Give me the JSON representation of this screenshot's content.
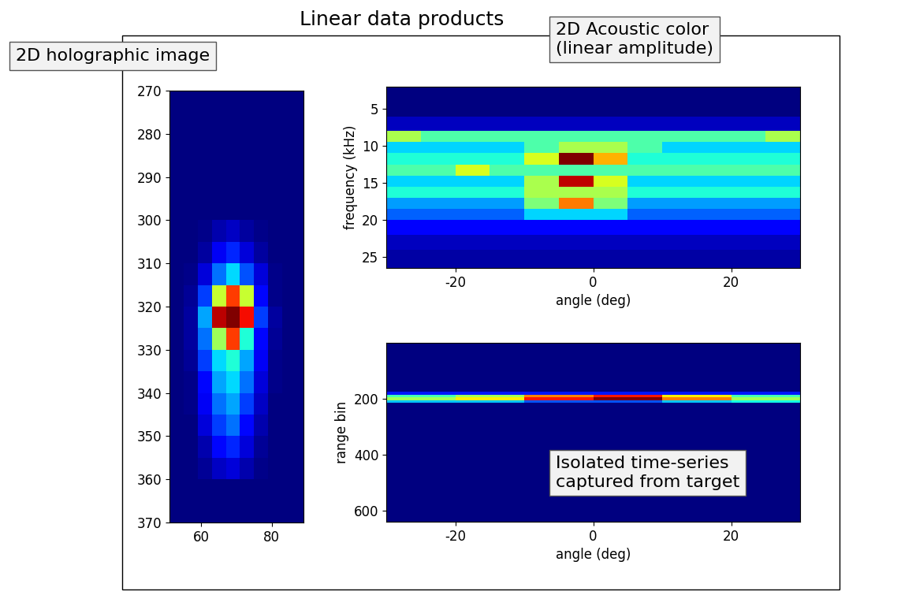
{
  "title": "Linear data products",
  "chart_data": [
    {
      "type": "heatmap",
      "annotation": "2D holographic image",
      "xlim": [
        51,
        89
      ],
      "ylim": [
        370,
        270
      ],
      "xticks": [
        60,
        80
      ],
      "yticks": [
        270,
        280,
        290,
        300,
        310,
        320,
        330,
        340,
        350,
        360,
        370
      ],
      "x_edges": [
        51,
        55,
        59,
        63,
        67,
        71,
        75,
        79,
        83,
        89
      ],
      "y_edges": [
        270,
        275,
        280,
        285,
        290,
        295,
        300,
        305,
        310,
        315,
        320,
        325,
        330,
        335,
        340,
        345,
        350,
        355,
        360,
        365,
        370
      ],
      "cells": [
        [
          0.02,
          0.02,
          0.02,
          0.02,
          0.02,
          0.02,
          0.02,
          0.02,
          0.02
        ],
        [
          0.02,
          0.02,
          0.02,
          0.02,
          0.02,
          0.02,
          0.02,
          0.02,
          0.02
        ],
        [
          0.02,
          0.02,
          0.02,
          0.02,
          0.02,
          0.02,
          0.02,
          0.02,
          0.02
        ],
        [
          0.02,
          0.02,
          0.02,
          0.02,
          0.02,
          0.02,
          0.02,
          0.02,
          0.02
        ],
        [
          0.02,
          0.02,
          0.02,
          0.02,
          0.02,
          0.02,
          0.02,
          0.02,
          0.02
        ],
        [
          0.02,
          0.02,
          0.02,
          0.02,
          0.02,
          0.02,
          0.02,
          0.02,
          0.02
        ],
        [
          0.02,
          0.02,
          0.03,
          0.06,
          0.08,
          0.05,
          0.03,
          0.02,
          0.02
        ],
        [
          0.02,
          0.02,
          0.05,
          0.12,
          0.18,
          0.1,
          0.05,
          0.02,
          0.02
        ],
        [
          0.02,
          0.03,
          0.1,
          0.25,
          0.35,
          0.22,
          0.1,
          0.03,
          0.02
        ],
        [
          0.02,
          0.04,
          0.2,
          0.6,
          0.85,
          0.6,
          0.15,
          0.03,
          0.02
        ],
        [
          0.02,
          0.05,
          0.3,
          0.95,
          1.0,
          0.9,
          0.2,
          0.05,
          0.02
        ],
        [
          0.02,
          0.05,
          0.25,
          0.55,
          0.85,
          0.4,
          0.15,
          0.04,
          0.02
        ],
        [
          0.02,
          0.04,
          0.2,
          0.35,
          0.4,
          0.3,
          0.12,
          0.03,
          0.02
        ],
        [
          0.02,
          0.03,
          0.15,
          0.3,
          0.35,
          0.25,
          0.1,
          0.03,
          0.02
        ],
        [
          0.02,
          0.03,
          0.12,
          0.25,
          0.3,
          0.2,
          0.08,
          0.02,
          0.02
        ],
        [
          0.02,
          0.02,
          0.1,
          0.2,
          0.25,
          0.15,
          0.06,
          0.02,
          0.02
        ],
        [
          0.02,
          0.02,
          0.06,
          0.15,
          0.18,
          0.1,
          0.04,
          0.02,
          0.02
        ],
        [
          0.02,
          0.02,
          0.04,
          0.08,
          0.1,
          0.06,
          0.03,
          0.02,
          0.02
        ],
        [
          0.02,
          0.02,
          0.02,
          0.02,
          0.02,
          0.02,
          0.02,
          0.02,
          0.02
        ],
        [
          0.02,
          0.02,
          0.02,
          0.02,
          0.02,
          0.02,
          0.02,
          0.02,
          0.02
        ]
      ]
    },
    {
      "type": "heatmap",
      "annotation": "2D Acoustic color\n(linear amplitude)",
      "xlabel": "angle (deg)",
      "ylabel": "frequency (kHz)",
      "xlim": [
        -30,
        30
      ],
      "ylim": [
        26.5,
        2
      ],
      "xticks": [
        -20,
        0,
        20
      ],
      "yticks": [
        5,
        10,
        15,
        20,
        25
      ],
      "x_edges": [
        -30,
        -25,
        -20,
        -15,
        -10,
        -5,
        0,
        5,
        10,
        15,
        20,
        25,
        30
      ],
      "y_edges": [
        2,
        4,
        6,
        8,
        9.5,
        11,
        12.5,
        14,
        15.5,
        17,
        18.5,
        20,
        22,
        24,
        26.5
      ],
      "cells": [
        [
          0.05,
          0.05,
          0.05,
          0.05,
          0.05,
          0.05,
          0.05,
          0.05,
          0.05,
          0.05,
          0.05,
          0.05
        ],
        [
          0.05,
          0.05,
          0.05,
          0.05,
          0.05,
          0.05,
          0.05,
          0.05,
          0.05,
          0.05,
          0.05,
          0.05
        ],
        [
          0.1,
          0.1,
          0.1,
          0.1,
          0.1,
          0.1,
          0.1,
          0.1,
          0.1,
          0.1,
          0.1,
          0.1
        ],
        [
          0.55,
          0.45,
          0.45,
          0.45,
          0.45,
          0.45,
          0.45,
          0.45,
          0.45,
          0.45,
          0.45,
          0.55
        ],
        [
          0.35,
          0.35,
          0.35,
          0.35,
          0.45,
          0.55,
          0.55,
          0.45,
          0.35,
          0.35,
          0.35,
          0.35
        ],
        [
          0.4,
          0.4,
          0.4,
          0.4,
          0.6,
          0.95,
          0.7,
          0.4,
          0.4,
          0.4,
          0.4,
          0.4
        ],
        [
          0.45,
          0.45,
          0.6,
          0.45,
          0.45,
          0.45,
          0.45,
          0.45,
          0.45,
          0.45,
          0.45,
          0.45
        ],
        [
          0.35,
          0.35,
          0.35,
          0.35,
          0.55,
          0.9,
          0.6,
          0.35,
          0.35,
          0.35,
          0.35,
          0.35
        ],
        [
          0.4,
          0.4,
          0.4,
          0.4,
          0.55,
          0.55,
          0.55,
          0.4,
          0.4,
          0.4,
          0.4,
          0.4
        ],
        [
          0.3,
          0.3,
          0.3,
          0.3,
          0.5,
          0.75,
          0.5,
          0.3,
          0.3,
          0.3,
          0.3,
          0.3
        ],
        [
          0.25,
          0.25,
          0.25,
          0.25,
          0.35,
          0.35,
          0.35,
          0.25,
          0.25,
          0.25,
          0.25,
          0.25
        ],
        [
          0.15,
          0.15,
          0.15,
          0.15,
          0.15,
          0.15,
          0.15,
          0.15,
          0.15,
          0.15,
          0.15,
          0.15
        ],
        [
          0.1,
          0.1,
          0.1,
          0.1,
          0.1,
          0.1,
          0.1,
          0.1,
          0.1,
          0.1,
          0.1,
          0.1
        ],
        [
          0.08,
          0.08,
          0.08,
          0.08,
          0.08,
          0.08,
          0.08,
          0.08,
          0.08,
          0.08,
          0.08,
          0.08
        ]
      ]
    },
    {
      "type": "heatmap",
      "annotation": "Isolated time-series\ncaptured from target",
      "xlabel": "angle (deg)",
      "ylabel": "range bin",
      "xlim": [
        -30,
        30
      ],
      "ylim": [
        640,
        0
      ],
      "xticks": [
        -20,
        0,
        20
      ],
      "yticks": [
        200,
        400,
        600
      ],
      "x_edges": [
        -30,
        -20,
        -10,
        0,
        10,
        20,
        30
      ],
      "y_edges": [
        0,
        175,
        185,
        195,
        205,
        215,
        640
      ],
      "cells": [
        [
          0.02,
          0.02,
          0.02,
          0.02,
          0.02,
          0.02
        ],
        [
          0.15,
          0.15,
          0.15,
          0.15,
          0.15,
          0.15
        ],
        [
          0.4,
          0.5,
          0.7,
          0.8,
          0.6,
          0.4
        ],
        [
          0.5,
          0.6,
          0.8,
          0.9,
          0.7,
          0.5
        ],
        [
          0.3,
          0.3,
          0.2,
          0.2,
          0.3,
          0.35
        ],
        [
          0.02,
          0.02,
          0.02,
          0.02,
          0.02,
          0.02
        ]
      ]
    }
  ]
}
